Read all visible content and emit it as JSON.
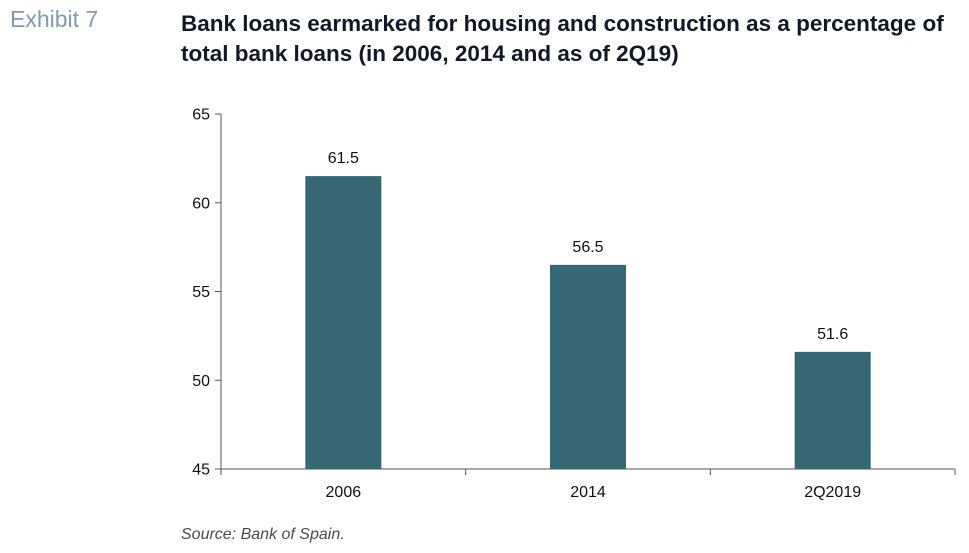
{
  "exhibit": {
    "label": "Exhibit 7"
  },
  "colors": {
    "bar": "#366873",
    "axis": "#555555",
    "exhibit_label": "#7f9bb3"
  },
  "source": {
    "text": "Source: Bank of Spain."
  },
  "chart_data": {
    "type": "bar",
    "title": "Bank loans earmarked for housing and construction as a percentage of total bank loans (in 2006, 2014 and as of 2Q19)",
    "categories": [
      "2006",
      "2014",
      "2Q2019"
    ],
    "values": [
      61.5,
      56.5,
      51.6
    ],
    "data_labels": [
      "61.5",
      "56.5",
      "51.6"
    ],
    "xlabel": "",
    "ylabel": "",
    "ylim": [
      45,
      65
    ],
    "yticks": [
      45,
      50,
      55,
      60,
      65
    ],
    "grid": false,
    "legend": "none"
  }
}
